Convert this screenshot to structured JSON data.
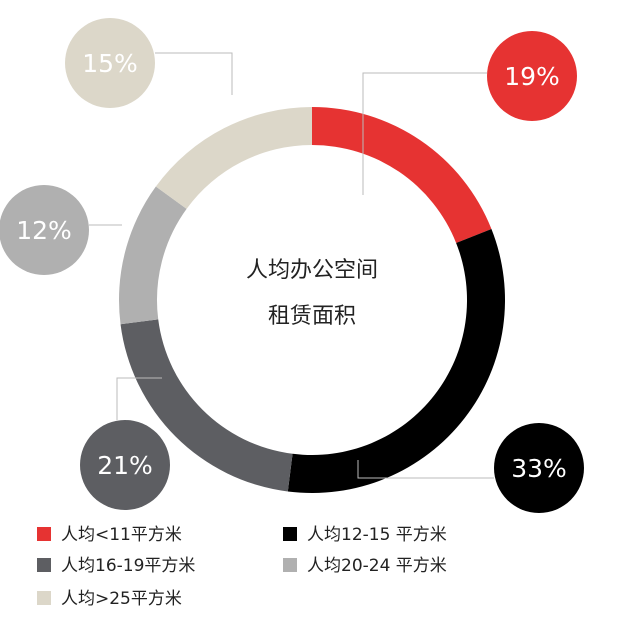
{
  "chart_data": {
    "type": "pie",
    "donut": true,
    "center_label": [
      "人均办公空间",
      "租赁面积"
    ],
    "slices": [
      {
        "label": "人均<11平方米",
        "value": 19,
        "display": "19%",
        "color": "#e63332",
        "text_color": "#ffffff"
      },
      {
        "label": "人均12-15 平方米",
        "value": 33,
        "display": "33%",
        "color": "#000000",
        "text_color": "#ffffff"
      },
      {
        "label": "人均16-19平方米",
        "value": 21,
        "display": "21%",
        "color": "#5d5e62",
        "text_color": "#ffffff"
      },
      {
        "label": "人均20-24 平方米",
        "value": 12,
        "display": "12%",
        "color": "#b0b0b0",
        "text_color": "#ffffff"
      },
      {
        "label": "人均>25平方米",
        "value": 15,
        "display": "15%",
        "color": "#dcd7c9",
        "text_color": "#ffffff"
      }
    ],
    "legend_placement": "bottom"
  }
}
